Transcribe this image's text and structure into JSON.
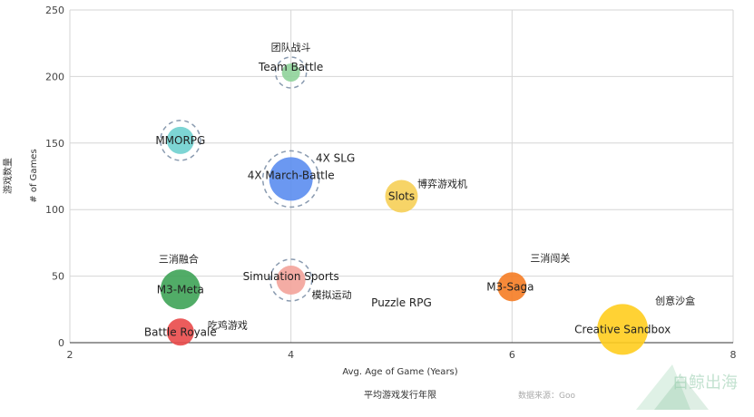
{
  "chart_data": {
    "type": "bubble",
    "title": "",
    "xlabel": "Avg. Age of Game (Years)",
    "xlabel_cn": "平均游戏发行年限",
    "ylabel": "# of Games",
    "ylabel_cn": "游戏数量",
    "xlim": [
      2,
      8
    ],
    "ylim": [
      0,
      250
    ],
    "xticks": [
      2,
      4,
      6,
      8
    ],
    "yticks": [
      0,
      50,
      100,
      150,
      200,
      250
    ],
    "grid": true,
    "legend": "none",
    "points": [
      {
        "name": "Team Battle",
        "name_cn": "团队战斗",
        "x": 4.0,
        "y": 203,
        "size": 10,
        "color": "#8fd39a",
        "dashed": true
      },
      {
        "name": "MMORPG",
        "name_cn": "",
        "x": 3.0,
        "y": 152,
        "size": 15,
        "color": "#6fd0cf",
        "dashed": true
      },
      {
        "name": "4X March-Battle",
        "name_cn": "",
        "x": 4.0,
        "y": 123,
        "size": 24,
        "color": "#5b8def",
        "dashed": true
      },
      {
        "name": "4X SLG",
        "name_cn": "",
        "x": null,
        "y": null,
        "size": 0,
        "color": "",
        "dashed": false
      },
      {
        "name": "Slots",
        "name_cn": "博弈游戏机",
        "x": 5.0,
        "y": 110,
        "size": 18,
        "color": "#f6cf57",
        "dashed": false
      },
      {
        "name": "M3-Meta",
        "name_cn": "三消融合",
        "x": 3.0,
        "y": 40,
        "size": 22,
        "color": "#3ea356",
        "dashed": false
      },
      {
        "name": "Simulation Sports",
        "name_cn": "模拟运动",
        "x": 4.0,
        "y": 47,
        "size": 16,
        "color": "#f3a39a",
        "dashed": true
      },
      {
        "name": "Puzzle RPG",
        "name_cn": "",
        "x": 5.0,
        "y": 30,
        "size": 0,
        "color": "#cccccc",
        "dashed": false
      },
      {
        "name": "M3-Saga",
        "name_cn": "三消闯关",
        "x": 6.0,
        "y": 42,
        "size": 16,
        "color": "#f57c23",
        "dashed": false
      },
      {
        "name": "Battle Royale",
        "name_cn": "吃鸡游戏",
        "x": 3.0,
        "y": 8,
        "size": 15,
        "color": "#e94a4a",
        "dashed": false
      },
      {
        "name": "Creative Sandbox",
        "name_cn": "创意沙盒",
        "x": 7.0,
        "y": 10,
        "size": 28,
        "color": "#ffcd1e",
        "dashed": false
      }
    ]
  },
  "watermark": {
    "text": "白鲸出海",
    "source": "数据来源：Goo"
  }
}
